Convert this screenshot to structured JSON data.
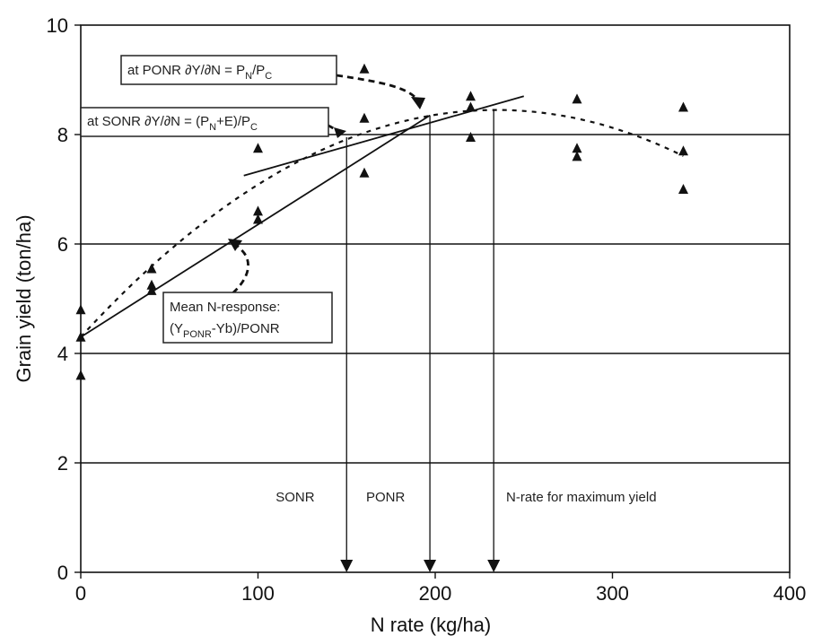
{
  "chart_data": {
    "type": "scatter",
    "xlabel": "N rate (kg/ha)",
    "ylabel": "Grain yield (ton/ha)",
    "xlim": [
      0,
      400
    ],
    "ylim": [
      0,
      10
    ],
    "x_ticks": [
      0,
      100,
      200,
      300,
      400
    ],
    "y_ticks": [
      0,
      2,
      4,
      6,
      8,
      10
    ],
    "horizontal_grid": [
      2,
      4,
      6,
      8
    ],
    "points": [
      {
        "x": 0,
        "y": 4.8
      },
      {
        "x": 0,
        "y": 4.3
      },
      {
        "x": 0,
        "y": 3.6
      },
      {
        "x": 40,
        "y": 5.55
      },
      {
        "x": 40,
        "y": 5.25
      },
      {
        "x": 40,
        "y": 5.15
      },
      {
        "x": 100,
        "y": 7.75
      },
      {
        "x": 100,
        "y": 6.6
      },
      {
        "x": 100,
        "y": 6.45
      },
      {
        "x": 160,
        "y": 9.2
      },
      {
        "x": 160,
        "y": 8.3
      },
      {
        "x": 160,
        "y": 7.3
      },
      {
        "x": 220,
        "y": 8.7
      },
      {
        "x": 220,
        "y": 8.5
      },
      {
        "x": 220,
        "y": 7.95
      },
      {
        "x": 280,
        "y": 8.65
      },
      {
        "x": 280,
        "y": 7.75
      },
      {
        "x": 280,
        "y": 7.6
      },
      {
        "x": 340,
        "y": 8.5
      },
      {
        "x": 340,
        "y": 7.7
      },
      {
        "x": 340,
        "y": 7.0
      }
    ],
    "quadratic_fit": {
      "a": 4.3,
      "b": 0.0354,
      "c": -7.55e-05,
      "x_range": [
        0,
        340
      ]
    },
    "mean_response_line": [
      {
        "x": 0,
        "y": 4.3
      },
      {
        "x": 197,
        "y": 8.35
      }
    ],
    "tangent_line": [
      {
        "x": 92,
        "y": 7.25
      },
      {
        "x": 250,
        "y": 8.7
      }
    ],
    "vertical_markers": [
      {
        "x": 150,
        "label": "SONR",
        "y_top": 7.95,
        "label_x": 110
      },
      {
        "x": 197,
        "label": "PONR",
        "y_top": 8.35,
        "label_x": 161
      },
      {
        "x": 233,
        "label": "N-rate for maximum yield",
        "y_top": 8.45,
        "label_x": 240
      }
    ],
    "annotations": {
      "ponr": {
        "main": "at PONR ∂Y/∂N = P",
        "sub1": "N",
        "mid": "/P",
        "sub2": "C"
      },
      "sonr": {
        "main": "at SONR ∂Y/∂N = (P",
        "sub1": "N",
        "mid": "+E)/P",
        "sub2": "C"
      },
      "mean": {
        "line1": "Mean N-response:",
        "line2_a": "(Y",
        "line2_sub": "PONR",
        "line2_b": "-Yb)/PONR"
      }
    }
  }
}
